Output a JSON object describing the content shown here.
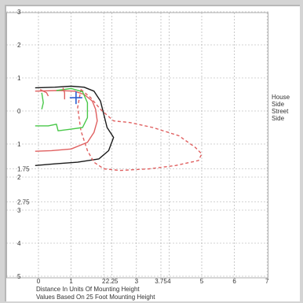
{
  "chart_data": {
    "type": "line",
    "title": "",
    "xlabel": "Distance In Units Of Mounting Height",
    "subcaption": "Values Based On 25 Foot Mounting Height",
    "xlim": [
      0,
      7
    ],
    "ylim": [
      -5,
      3
    ],
    "x_ticks": [
      {
        "v": 0,
        "label": "0"
      },
      {
        "v": 1,
        "label": "1"
      },
      {
        "v": 2,
        "label": "2"
      },
      {
        "v": 2.25,
        "label": "2.25"
      },
      {
        "v": 3,
        "label": "3"
      },
      {
        "v": 3.75,
        "label": "3.75"
      },
      {
        "v": 4,
        "label": "4"
      },
      {
        "v": 5,
        "label": "5"
      },
      {
        "v": 6,
        "label": "6"
      },
      {
        "v": 7,
        "label": "7"
      }
    ],
    "y_ticks": [
      {
        "v": 3,
        "label": "3"
      },
      {
        "v": 2,
        "label": "2"
      },
      {
        "v": 1,
        "label": "1"
      },
      {
        "v": 0,
        "label": "0"
      },
      {
        "v": -1,
        "label": "1"
      },
      {
        "v": -1.75,
        "label": "1.75"
      },
      {
        "v": -2,
        "label": "2"
      },
      {
        "v": -2.75,
        "label": "2.75"
      },
      {
        "v": -3,
        "label": "3"
      },
      {
        "v": -4,
        "label": "4"
      },
      {
        "v": -5,
        "label": "5"
      }
    ],
    "side_labels": [
      "House",
      "Side",
      "Street",
      "Side"
    ],
    "grid": true,
    "luminaire": {
      "x": 1.15,
      "y": 0.4
    },
    "series": [
      {
        "color": "#1a1a1a",
        "dash": "",
        "points": [
          [
            -0.1,
            0.7
          ],
          [
            0.5,
            0.72
          ],
          [
            1.0,
            0.75
          ],
          [
            1.4,
            0.72
          ],
          [
            1.7,
            0.6
          ],
          [
            1.9,
            0.3
          ],
          [
            2.0,
            -0.1
          ],
          [
            2.1,
            -0.5
          ],
          [
            2.3,
            -0.8
          ],
          [
            2.15,
            -1.2
          ],
          [
            1.85,
            -1.45
          ],
          [
            1.2,
            -1.55
          ],
          [
            0.5,
            -1.6
          ],
          [
            -0.1,
            -1.65
          ]
        ]
      },
      {
        "color": "#e06060",
        "dash": "",
        "points": [
          [
            -0.1,
            0.6
          ],
          [
            0.6,
            0.62
          ],
          [
            1.1,
            0.6
          ],
          [
            1.4,
            0.5
          ],
          [
            1.65,
            0.3
          ],
          [
            1.75,
            0.05
          ],
          [
            1.8,
            -0.3
          ],
          [
            1.7,
            -0.65
          ],
          [
            1.5,
            -0.95
          ],
          [
            1.0,
            -1.15
          ],
          [
            0.4,
            -1.2
          ],
          [
            -0.1,
            -1.22
          ]
        ]
      },
      {
        "color": "#e06060",
        "dash": "4 3",
        "points": [
          [
            1.3,
            0.65
          ],
          [
            1.6,
            0.4
          ],
          [
            1.9,
            0.05
          ],
          [
            2.3,
            -0.3
          ],
          [
            2.8,
            -0.35
          ],
          [
            3.5,
            -0.5
          ],
          [
            4.3,
            -0.75
          ],
          [
            4.8,
            -1.1
          ],
          [
            5.0,
            -1.3
          ],
          [
            4.9,
            -1.5
          ],
          [
            4.2,
            -1.65
          ],
          [
            3.4,
            -1.75
          ],
          [
            2.5,
            -1.8
          ],
          [
            2.0,
            -1.75
          ],
          [
            1.7,
            -1.55
          ],
          [
            1.5,
            -1.2
          ],
          [
            1.3,
            -0.6
          ],
          [
            1.2,
            0.1
          ],
          [
            1.3,
            0.65
          ]
        ]
      },
      {
        "color": "#49c849",
        "dash": "",
        "points": [
          [
            0.55,
            0.62
          ],
          [
            1.0,
            0.68
          ],
          [
            1.35,
            0.58
          ],
          [
            1.5,
            0.25
          ],
          [
            1.5,
            -0.2
          ],
          [
            1.35,
            -0.5
          ],
          [
            1.0,
            -0.55
          ],
          [
            0.6,
            -0.6
          ],
          [
            0.55,
            -0.4
          ],
          [
            0.3,
            -0.45
          ],
          [
            -0.1,
            -0.45
          ]
        ]
      },
      {
        "color": "#49c849",
        "dash": "",
        "points": [
          [
            0.1,
            0.55
          ],
          [
            0.15,
            0.25
          ],
          [
            0.1,
            0.05
          ]
        ]
      },
      {
        "color": "#e06060",
        "dash": "",
        "points": [
          [
            0.05,
            0.65
          ],
          [
            0.25,
            0.55
          ],
          [
            0.3,
            0.45
          ]
        ]
      },
      {
        "color": "#e06060",
        "dash": "",
        "points": [
          [
            0.75,
            0.7
          ],
          [
            0.8,
            0.55
          ],
          [
            0.8,
            0.35
          ]
        ]
      }
    ]
  }
}
